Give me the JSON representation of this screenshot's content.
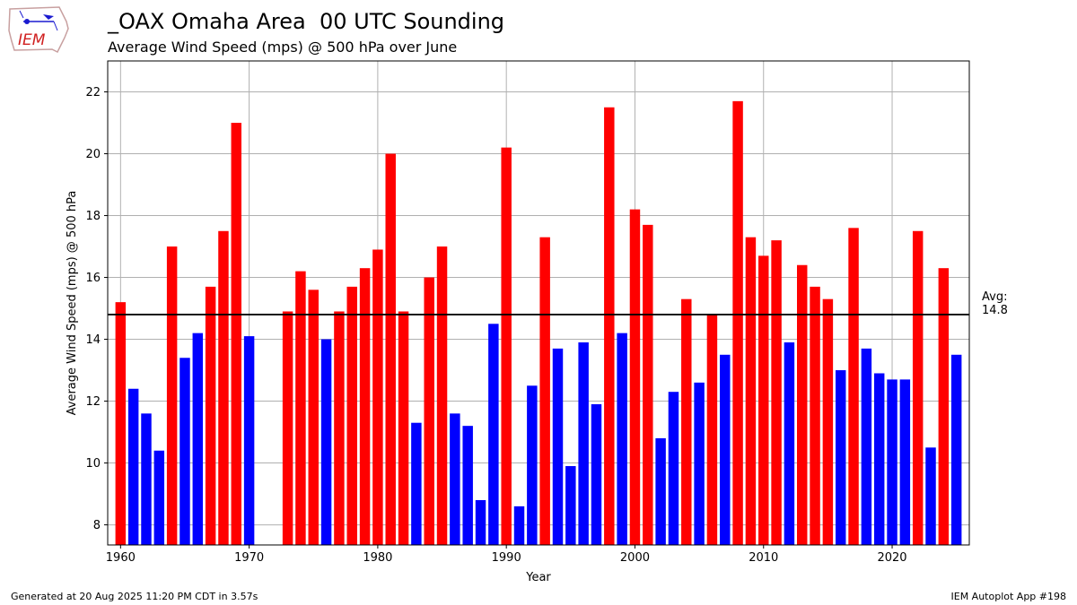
{
  "header": {
    "title": "_OAX Omaha Area  00 UTC Sounding",
    "subtitle": "Average Wind Speed (mps) @ 500 hPa over June",
    "logo_text": "IEM"
  },
  "footer": {
    "generated": "Generated at 20 Aug 2025 11:20 PM CDT in 3.57s",
    "app": "IEM Autoplot App #198"
  },
  "colors": {
    "above": "#ff0000",
    "below": "#0000ff",
    "avg_line": "#000000",
    "grid": "#b0b0b0"
  },
  "chart_data": {
    "type": "bar",
    "xlabel": "Year",
    "ylabel": "Average Wind Speed (mps) @ 500 hPa",
    "xlim": [
      1959,
      2026
    ],
    "ylim": [
      7.35,
      23
    ],
    "xticks": [
      1960,
      1970,
      1980,
      1990,
      2000,
      2010,
      2020
    ],
    "yticks": [
      8,
      10,
      12,
      14,
      16,
      18,
      20,
      22
    ],
    "grid": true,
    "average": 14.8,
    "average_label": "Avg:\n14.8",
    "x": [
      1960,
      1961,
      1962,
      1963,
      1964,
      1965,
      1966,
      1967,
      1968,
      1969,
      1970,
      1973,
      1974,
      1975,
      1976,
      1977,
      1978,
      1979,
      1980,
      1981,
      1982,
      1983,
      1984,
      1985,
      1986,
      1987,
      1988,
      1989,
      1990,
      1991,
      1992,
      1993,
      1994,
      1995,
      1996,
      1997,
      1998,
      1999,
      2000,
      2001,
      2002,
      2003,
      2004,
      2005,
      2006,
      2007,
      2008,
      2009,
      2010,
      2011,
      2012,
      2013,
      2014,
      2015,
      2016,
      2017,
      2018,
      2019,
      2020,
      2021,
      2022,
      2023,
      2024,
      2025
    ],
    "values": [
      15.2,
      12.4,
      11.6,
      10.4,
      17.0,
      13.4,
      14.2,
      15.7,
      17.5,
      21.0,
      14.1,
      14.9,
      16.2,
      15.6,
      14.0,
      14.9,
      15.7,
      16.3,
      16.9,
      20.0,
      14.9,
      11.3,
      16.0,
      17.0,
      11.6,
      11.2,
      8.8,
      14.5,
      20.2,
      8.6,
      12.5,
      17.3,
      13.7,
      9.9,
      13.9,
      11.9,
      21.5,
      14.2,
      18.2,
      17.7,
      10.8,
      12.3,
      15.3,
      12.6,
      14.8,
      13.5,
      21.7,
      17.3,
      16.7,
      17.2,
      13.9,
      16.4,
      15.7,
      15.3,
      13.0,
      17.6,
      13.7,
      12.9,
      12.7,
      12.7,
      17.5,
      10.5,
      16.3,
      13.5
    ]
  }
}
